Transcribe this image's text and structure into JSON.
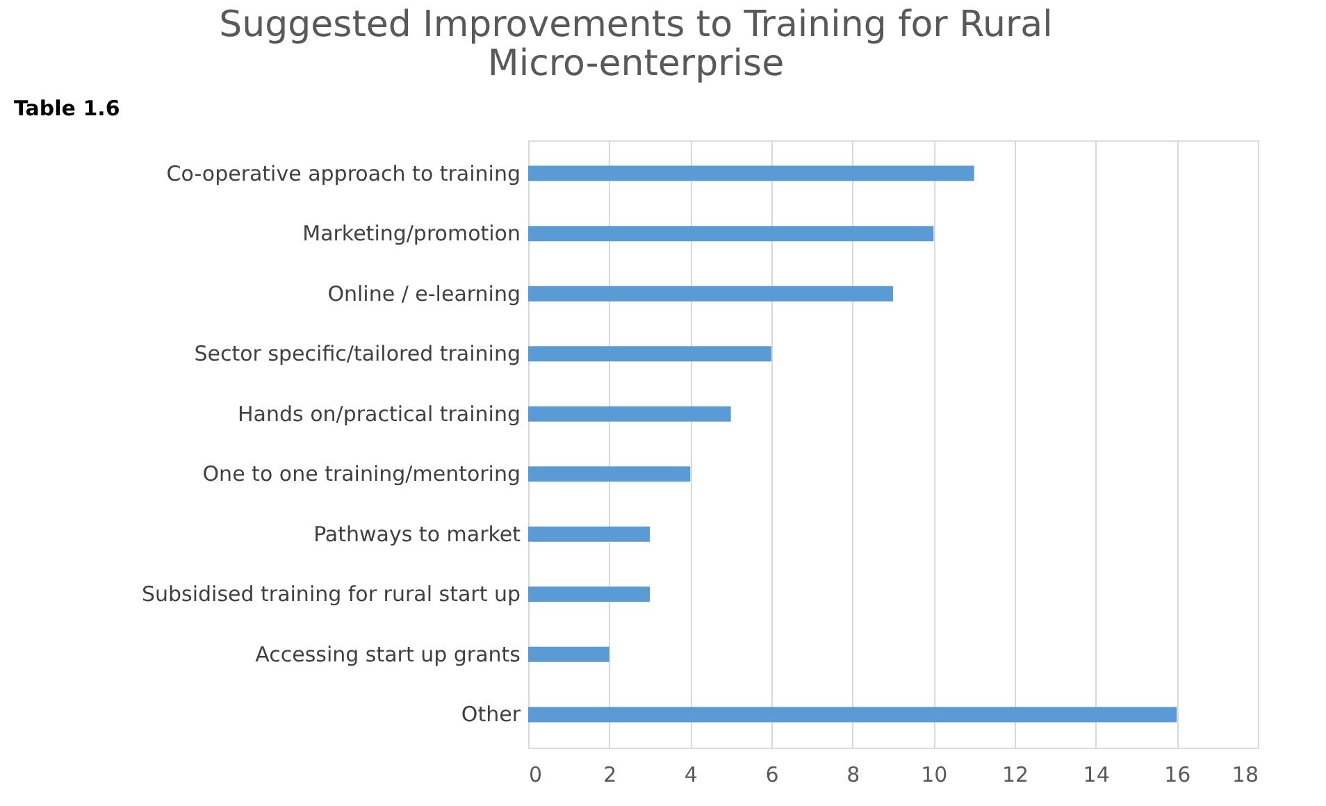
{
  "chart_data": {
    "type": "bar",
    "orientation": "horizontal",
    "title": [
      "Suggested Improvements to Training for Rural",
      "Micro-enterprise"
    ],
    "annotations": [
      "Table 1.6"
    ],
    "categories": [
      "Co-operative approach to training",
      "Marketing/promotion ",
      "Online / e-learning ",
      "Sector specific/tailored training ",
      "Hands on/practical training",
      "One to one training/mentoring ",
      "Pathways to market",
      "Subsidised training for rural start up",
      "Accessing start up grants",
      "Other "
    ],
    "values": [
      11,
      10,
      9,
      6,
      5,
      4,
      3,
      3,
      2,
      16
    ],
    "color": "#5b9bd5",
    "xlim": [
      0,
      18
    ],
    "xticks": [
      0,
      2,
      4,
      6,
      8,
      10,
      12,
      14,
      16,
      18
    ],
    "grid": "x"
  }
}
